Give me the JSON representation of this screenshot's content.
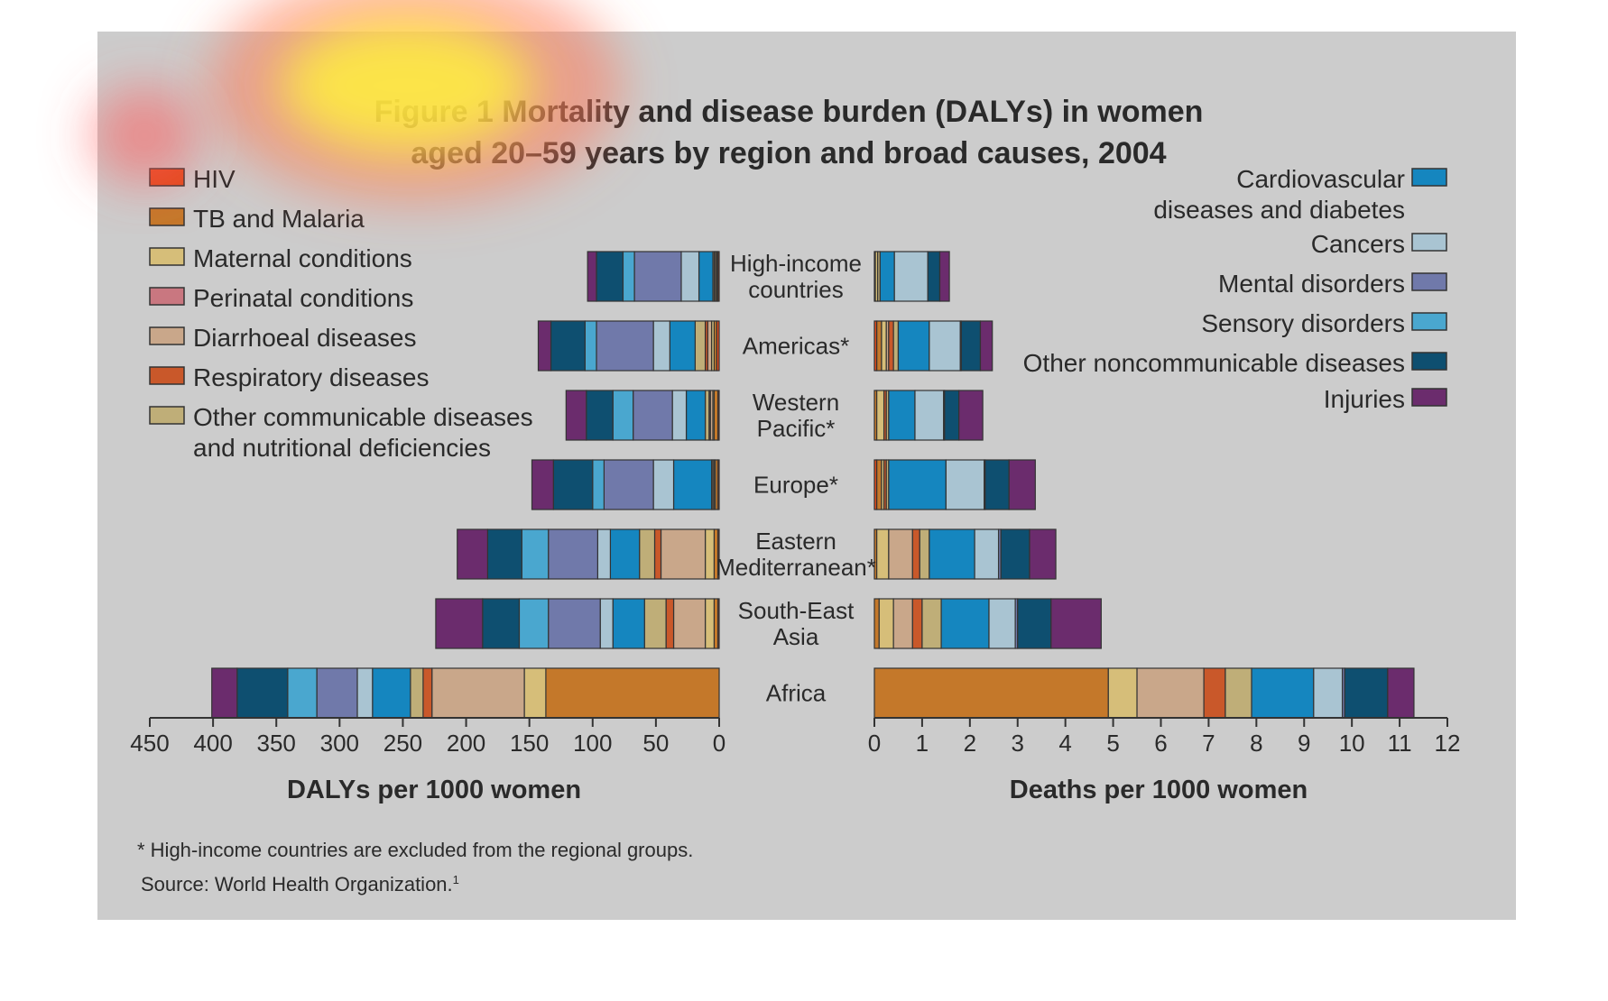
{
  "figure": {
    "title_line1": "Figure 1 Mortality and disease burden (DALYs) in women",
    "title_line2": "aged 20–59 years by region and broad causes, 2004",
    "footnote": "* High-income countries are excluded from the regional groups.",
    "source": "Source: World Health Organization.",
    "source_sup": "1",
    "background": "#cccccc"
  },
  "legend_left": [
    {
      "lines": [
        "HIV"
      ],
      "color": "#e04a1c"
    },
    {
      "lines": [
        "TB and Malaria"
      ],
      "color": "#c4782a"
    },
    {
      "lines": [
        "Maternal conditions"
      ],
      "color": "#d6be79"
    },
    {
      "lines": [
        "Perinatal conditions"
      ],
      "color": "#c97780"
    },
    {
      "lines": [
        "Diarrhoeal diseases"
      ],
      "color": "#c9a78a"
    },
    {
      "lines": [
        "Respiratory diseases"
      ],
      "color": "#c9582a"
    },
    {
      "lines": [
        "Other communicable diseases",
        "and nutritional deficiencies"
      ],
      "color": "#bfae78"
    }
  ],
  "legend_right": [
    {
      "lines": [
        "Cardiovascular",
        "diseases and diabetes"
      ],
      "color": "#1586bf"
    },
    {
      "lines": [
        "Cancers"
      ],
      "color": "#a9c4d2"
    },
    {
      "lines": [
        "Mental disorders"
      ],
      "color": "#7079aa"
    },
    {
      "lines": [
        "Sensory disorders"
      ],
      "color": "#4aa7cf"
    },
    {
      "lines": [
        "Other noncommunicable diseases"
      ],
      "color": "#0e4f70"
    },
    {
      "lines": [
        "Injuries"
      ],
      "color": "#6b2c6d"
    }
  ],
  "heatmap_overlay": [
    {
      "cx": 460,
      "cy": 95,
      "rx": 230,
      "ry": 130,
      "color": "rgba(255,120,90,0.55)"
    },
    {
      "cx": 450,
      "cy": 95,
      "rx": 140,
      "ry": 75,
      "color": "rgba(255,240,60,0.85)"
    },
    {
      "cx": 160,
      "cy": 150,
      "rx": 60,
      "ry": 55,
      "color": "rgba(255,90,90,0.55)"
    }
  ],
  "chart_data": [
    {
      "type": "bar",
      "orientation": "horizontal",
      "xlabel": "DALYs per 1000 women",
      "xlim": [
        0,
        450
      ],
      "x_direction": "reversed",
      "xticks": [
        450,
        400,
        350,
        300,
        250,
        200,
        150,
        100,
        50,
        0
      ],
      "categories": [
        [
          "High-income",
          "countries"
        ],
        [
          "Americas*"
        ],
        [
          "Western",
          "Pacific*"
        ],
        [
          "Europe*"
        ],
        [
          "Eastern",
          "Mediterranean*"
        ],
        [
          "South-East",
          "Asia"
        ],
        [
          "Africa"
        ]
      ],
      "series": [
        {
          "name": "HIV",
          "color": "#e04a1c",
          "values": [
            1,
            2,
            1,
            1,
            1,
            1,
            0
          ]
        },
        {
          "name": "TB and Malaria",
          "color": "#c4782a",
          "values": [
            1,
            2,
            3,
            2,
            3,
            3,
            137
          ]
        },
        {
          "name": "Maternal conditions",
          "color": "#d6be79",
          "values": [
            1,
            2,
            1,
            1,
            7,
            7,
            17
          ]
        },
        {
          "name": "Perinatal conditions",
          "color": "#c97780",
          "values": [
            0,
            0,
            0,
            0,
            0,
            0,
            0
          ]
        },
        {
          "name": "Diarrhoeal diseases",
          "color": "#c9a78a",
          "values": [
            1,
            3,
            2,
            1,
            35,
            25,
            73
          ]
        },
        {
          "name": "Respiratory diseases",
          "color": "#c9582a",
          "values": [
            0,
            2,
            1,
            0,
            5,
            6,
            7
          ]
        },
        {
          "name": "Other communicable diseases and nutritional deficiencies",
          "color": "#bfae78",
          "values": [
            1,
            8,
            3,
            1,
            12,
            17,
            10
          ]
        },
        {
          "name": "Cardiovascular diseases and diabetes",
          "color": "#1586bf",
          "values": [
            11,
            20,
            15,
            30,
            23,
            25,
            30
          ]
        },
        {
          "name": "Cancers",
          "color": "#a9c4d2",
          "values": [
            14,
            13,
            11,
            16,
            10,
            10,
            12
          ]
        },
        {
          "name": "Mental disorders",
          "color": "#7079aa",
          "values": [
            37,
            45,
            31,
            39,
            39,
            41,
            32
          ]
        },
        {
          "name": "Sensory disorders",
          "color": "#4aa7cf",
          "values": [
            9,
            9,
            16,
            9,
            21,
            23,
            23
          ]
        },
        {
          "name": "Other noncommunicable diseases",
          "color": "#0e4f70",
          "values": [
            21,
            27,
            21,
            31,
            27,
            29,
            40
          ]
        },
        {
          "name": "Injuries",
          "color": "#6b2c6d",
          "values": [
            7,
            10,
            16,
            17,
            24,
            37,
            20
          ]
        }
      ]
    },
    {
      "type": "bar",
      "orientation": "horizontal",
      "xlabel": "Deaths per 1000 women",
      "xlim": [
        0,
        12
      ],
      "xticks": [
        0,
        1,
        2,
        3,
        4,
        5,
        6,
        7,
        8,
        9,
        10,
        11,
        12
      ],
      "categories": [
        [
          "High-income",
          "countries"
        ],
        [
          "Americas*"
        ],
        [
          "Western",
          "Pacific*"
        ],
        [
          "Europe*"
        ],
        [
          "Eastern",
          "Mediterranean*"
        ],
        [
          "South-East",
          "Asia"
        ],
        [
          "Africa"
        ]
      ],
      "series": [
        {
          "name": "HIV",
          "color": "#e04a1c",
          "values": [
            0,
            0.05,
            0,
            0.05,
            0,
            0,
            0
          ]
        },
        {
          "name": "TB and Malaria",
          "color": "#c4782a",
          "values": [
            0.02,
            0.1,
            0.05,
            0.1,
            0.05,
            0.1,
            4.9
          ]
        },
        {
          "name": "Maternal conditions",
          "color": "#d6be79",
          "values": [
            0.05,
            0.1,
            0.15,
            0.05,
            0.25,
            0.3,
            0.6
          ]
        },
        {
          "name": "Perinatal conditions",
          "color": "#c97780",
          "values": [
            0,
            0,
            0,
            0,
            0,
            0,
            0
          ]
        },
        {
          "name": "Diarrhoeal diseases",
          "color": "#c9a78a",
          "values": [
            0,
            0.05,
            0,
            0,
            0.5,
            0.4,
            1.4
          ]
        },
        {
          "name": "Respiratory diseases",
          "color": "#c9582a",
          "values": [
            0,
            0.1,
            0.05,
            0.05,
            0.15,
            0.2,
            0.45
          ]
        },
        {
          "name": "Other communicable diseases and nutritional deficiencies",
          "color": "#bfae78",
          "values": [
            0.05,
            0.1,
            0.05,
            0.05,
            0.2,
            0.4,
            0.55
          ]
        },
        {
          "name": "Cardiovascular diseases and diabetes",
          "color": "#1586bf",
          "values": [
            0.3,
            0.65,
            0.55,
            1.2,
            0.95,
            1.0,
            1.3
          ]
        },
        {
          "name": "Cancers",
          "color": "#a9c4d2",
          "values": [
            0.7,
            0.65,
            0.6,
            0.8,
            0.5,
            0.55,
            0.6
          ]
        },
        {
          "name": "Mental disorders",
          "color": "#7079aa",
          "values": [
            0,
            0.02,
            0.02,
            0.02,
            0.05,
            0.05,
            0.05
          ]
        },
        {
          "name": "Sensory disorders",
          "color": "#4aa7cf",
          "values": [
            0,
            0,
            0,
            0,
            0,
            0,
            0
          ]
        },
        {
          "name": "Other noncommunicable diseases",
          "color": "#0e4f70",
          "values": [
            0.25,
            0.4,
            0.3,
            0.5,
            0.6,
            0.7,
            0.9
          ]
        },
        {
          "name": "Injuries",
          "color": "#6b2c6d",
          "values": [
            0.2,
            0.25,
            0.5,
            0.55,
            0.55,
            1.05,
            0.55
          ]
        }
      ]
    }
  ]
}
